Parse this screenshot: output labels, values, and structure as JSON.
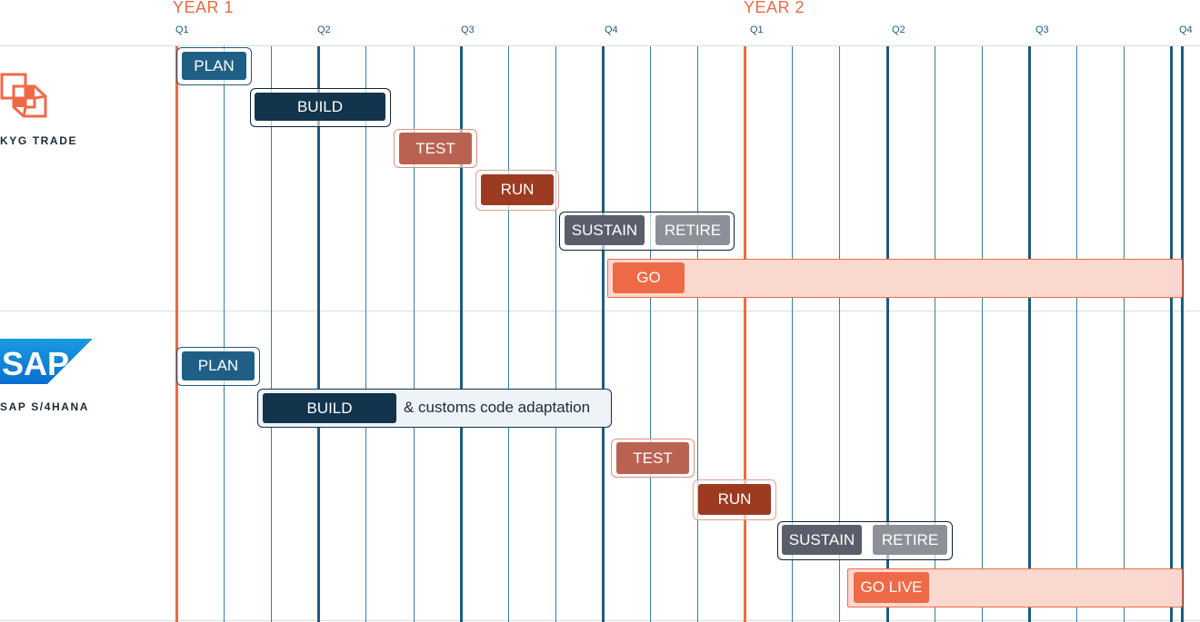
{
  "timeline": {
    "years": [
      "YEAR 1",
      "YEAR 2"
    ],
    "quarters": [
      "Q1",
      "Q2",
      "Q3",
      "Q4",
      "Q1",
      "Q2",
      "Q3",
      "Q4"
    ]
  },
  "rows": [
    {
      "company": "KYG TRADE",
      "tasks": {
        "plan": "PLAN",
        "build": "BUILD",
        "test": "TEST",
        "run": "RUN",
        "sustain": "SUSTAIN",
        "retire": "RETIRE",
        "go": "GO"
      }
    },
    {
      "company": "SAP S/4HANA",
      "logo_text": "SAP",
      "tasks": {
        "plan": "PLAN",
        "build": "BUILD",
        "build_note": "& customs code adaptation",
        "test": "TEST",
        "run": "RUN",
        "sustain": "SUSTAIN",
        "retire": "RETIRE",
        "go": "GO LIVE"
      }
    }
  ],
  "colors": {
    "accent": "#ee6a47",
    "navy": "#1f5c7d",
    "plan": "#1f5f86",
    "build": "#12344c",
    "test": "#ba6252",
    "run": "#9c3b22",
    "sustain": "#5a5e6b",
    "retire": "#8d9096",
    "go_fill": "#fad8cd"
  }
}
